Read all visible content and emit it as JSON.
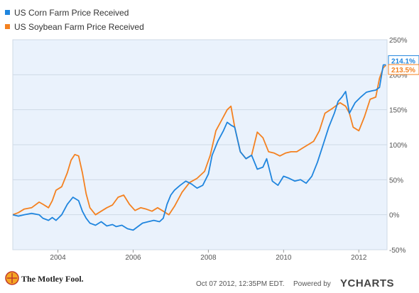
{
  "chart_data": {
    "type": "line",
    "title": "",
    "xlabel": "",
    "ylabel": "",
    "xlim": [
      2002.8,
      2012.75
    ],
    "ylim": [
      -50,
      250
    ],
    "x_ticks": [
      2004,
      2006,
      2008,
      2010,
      2012
    ],
    "x_tick_labels": [
      "2004",
      "2006",
      "2008",
      "2010",
      "2012"
    ],
    "y_ticks": [
      -50,
      0,
      50,
      100,
      150,
      200,
      250
    ],
    "y_tick_labels": [
      "-50%",
      "0%",
      "50%",
      "100%",
      "150%",
      "200%",
      "250%"
    ],
    "grid": "horizontal",
    "legend_position": "top-left",
    "series": [
      {
        "name": "US Corn Farm Price Received",
        "color": "#1f85de",
        "end_label": "214.1%",
        "x": [
          2002.8,
          2002.95,
          2003.1,
          2003.3,
          2003.5,
          2003.6,
          2003.75,
          2003.85,
          2003.95,
          2004.1,
          2004.25,
          2004.4,
          2004.55,
          2004.65,
          2004.75,
          2004.85,
          2005.0,
          2005.15,
          2005.3,
          2005.45,
          2005.55,
          2005.7,
          2005.85,
          2006.0,
          2006.1,
          2006.25,
          2006.4,
          2006.55,
          2006.7,
          2006.8,
          2006.9,
          2007.0,
          2007.1,
          2007.25,
          2007.4,
          2007.55,
          2007.7,
          2007.85,
          2008.0,
          2008.1,
          2008.25,
          2008.4,
          2008.5,
          2008.6,
          2008.7,
          2008.85,
          2009.0,
          2009.15,
          2009.3,
          2009.45,
          2009.55,
          2009.7,
          2009.85,
          2010.0,
          2010.15,
          2010.3,
          2010.45,
          2010.6,
          2010.75,
          2010.9,
          2011.05,
          2011.2,
          2011.35,
          2011.45,
          2011.55,
          2011.65,
          2011.75,
          2011.9,
          2012.05,
          2012.2,
          2012.35,
          2012.45,
          2012.55,
          2012.65,
          2012.72
        ],
        "values": [
          0,
          -2,
          0,
          2,
          0,
          -5,
          -8,
          -4,
          -8,
          0,
          15,
          25,
          20,
          5,
          -5,
          -12,
          -15,
          -10,
          -16,
          -14,
          -17,
          -15,
          -20,
          -22,
          -18,
          -12,
          -10,
          -8,
          -10,
          -5,
          15,
          28,
          35,
          42,
          48,
          44,
          38,
          42,
          58,
          85,
          105,
          120,
          132,
          128,
          125,
          90,
          80,
          85,
          65,
          68,
          80,
          48,
          42,
          55,
          52,
          48,
          50,
          45,
          55,
          75,
          100,
          125,
          145,
          162,
          168,
          176,
          145,
          160,
          168,
          175,
          177,
          178,
          182,
          214,
          214.1
        ]
      },
      {
        "name": "US Soybean Farm Price Received",
        "color": "#f48120",
        "end_label": "213.5%",
        "x": [
          2002.8,
          2002.95,
          2003.1,
          2003.3,
          2003.5,
          2003.6,
          2003.75,
          2003.85,
          2003.95,
          2004.1,
          2004.25,
          2004.35,
          2004.45,
          2004.55,
          2004.65,
          2004.75,
          2004.85,
          2005.0,
          2005.15,
          2005.3,
          2005.45,
          2005.6,
          2005.75,
          2005.9,
          2006.05,
          2006.2,
          2006.35,
          2006.5,
          2006.65,
          2006.8,
          2006.95,
          2007.1,
          2007.3,
          2007.5,
          2007.7,
          2007.9,
          2008.05,
          2008.2,
          2008.35,
          2008.5,
          2008.6,
          2008.7,
          2008.85,
          2009.0,
          2009.15,
          2009.3,
          2009.45,
          2009.6,
          2009.75,
          2009.9,
          2010.05,
          2010.2,
          2010.35,
          2010.5,
          2010.65,
          2010.8,
          2010.95,
          2011.1,
          2011.3,
          2011.5,
          2011.65,
          2011.75,
          2011.85,
          2012.0,
          2012.15,
          2012.3,
          2012.45,
          2012.55,
          2012.65,
          2012.72
        ],
        "values": [
          0,
          3,
          8,
          10,
          18,
          15,
          10,
          20,
          35,
          40,
          60,
          78,
          86,
          84,
          60,
          30,
          10,
          0,
          5,
          10,
          14,
          25,
          28,
          15,
          6,
          10,
          8,
          5,
          10,
          5,
          0,
          12,
          32,
          46,
          52,
          62,
          85,
          120,
          135,
          150,
          155,
          125,
          90,
          80,
          85,
          118,
          110,
          90,
          88,
          84,
          88,
          90,
          90,
          95,
          100,
          105,
          120,
          145,
          152,
          160,
          155,
          145,
          125,
          120,
          140,
          165,
          168,
          195,
          210,
          213.5
        ]
      }
    ]
  },
  "footer": {
    "brand": "The Motley Fool.",
    "timestamp": "Oct 07 2012, 12:35PM EDT.",
    "powered_by": "Powered by",
    "ycharts": "YCHARTS"
  }
}
